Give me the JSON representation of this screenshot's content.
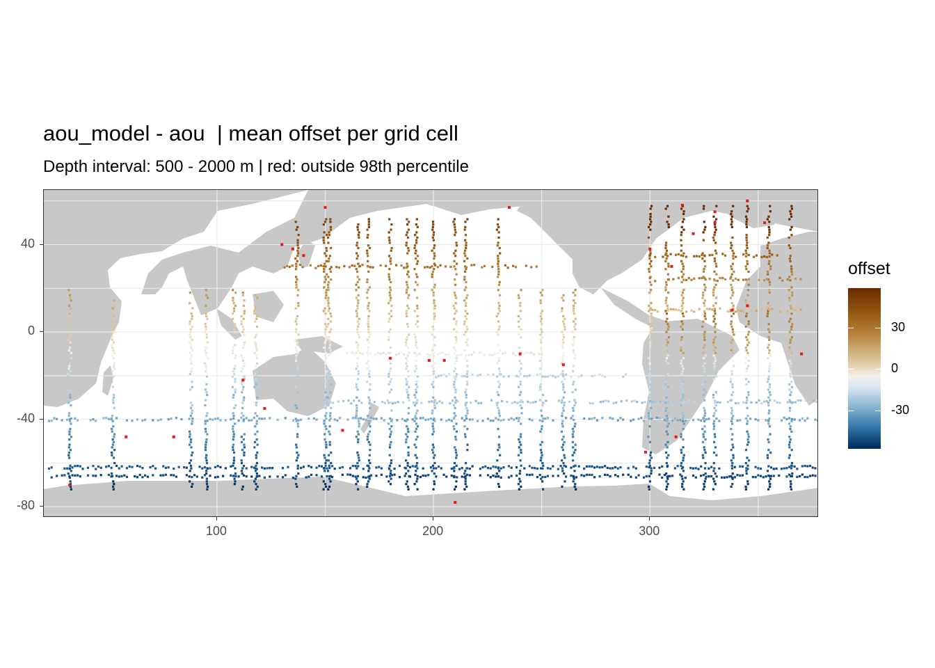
{
  "title": "aou_model - aou  | mean offset per grid cell",
  "subtitle": "Depth interval: 500 - 2000 m | red: outside 98th percentile",
  "map": {
    "x_range": [
      20,
      378
    ],
    "y_range": [
      -85,
      65
    ],
    "land_color": "#c8c8c8",
    "ocean_color": "#ffffff",
    "outlier_color": "#e41a1c",
    "x_ticks": [
      "100",
      "200",
      "300"
    ],
    "y_ticks": [
      "40",
      "0",
      "-40",
      "-80"
    ]
  },
  "legend": {
    "title": "offset",
    "labels": [
      "30",
      "0",
      "-30"
    ],
    "colors": {
      "high": "#6b2b00",
      "mid": "#f4f1ec",
      "low": "#002a5c"
    }
  }
}
